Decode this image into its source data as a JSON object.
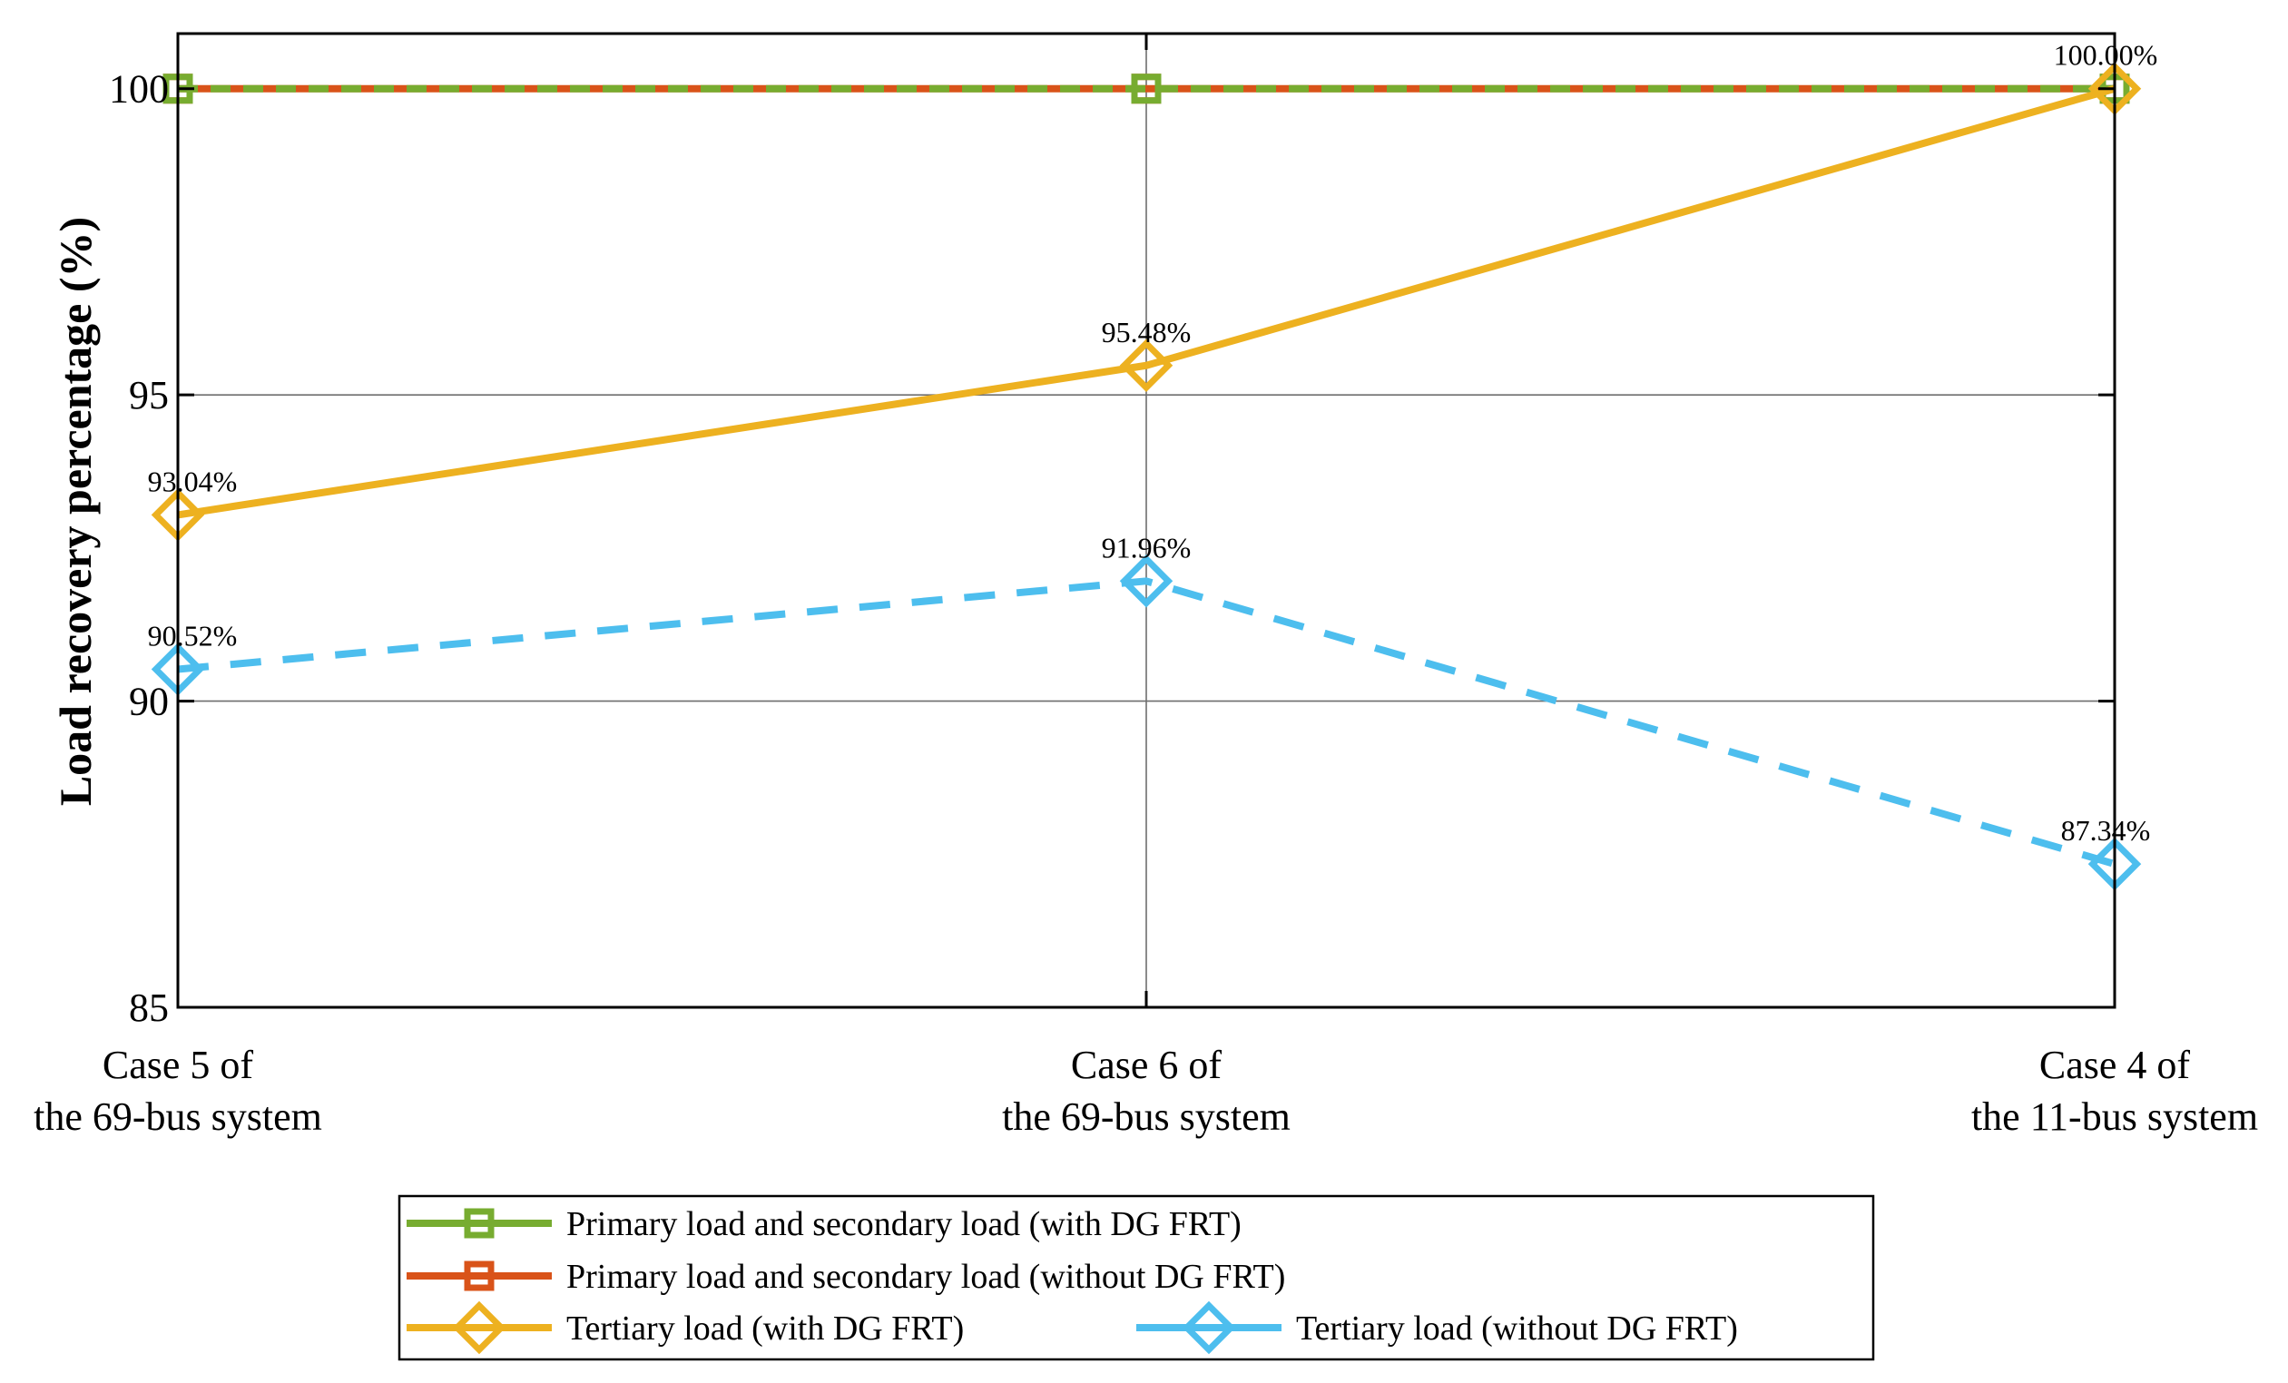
{
  "chart_data": {
    "type": "line",
    "title": "",
    "xlabel": "",
    "ylabel": "Load recovery percentage (%)",
    "ylim": [
      85,
      100.9
    ],
    "yticks": [
      85,
      90,
      95,
      100
    ],
    "ytick_labels": [
      "85",
      "90",
      "95",
      "100"
    ],
    "grid": true,
    "legend_position": "bottom-center",
    "categories": [
      [
        "Case 5 of",
        "the 69-bus system"
      ],
      [
        "Case 6 of",
        "the 69-bus system"
      ],
      [
        "Case 4 of",
        "the 11-bus system"
      ]
    ],
    "series": [
      {
        "name": "Primary load and secondary load (with DG FRT)",
        "values": [
          100,
          100,
          100
        ],
        "color": "#77AC30",
        "dashed": true,
        "marker": "square",
        "labels": [
          "",
          "",
          ""
        ]
      },
      {
        "name": "Primary load and secondary load (without DG FRT)",
        "values": [
          100,
          100,
          100
        ],
        "color": "#D95319",
        "dashed": false,
        "marker": "square",
        "labels": [
          "",
          "",
          ""
        ]
      },
      {
        "name": "Tertiary load (with DG FRT)",
        "values": [
          93.04,
          95.48,
          100
        ],
        "color": "#EDB120",
        "dashed": false,
        "marker": "diamond",
        "labels": [
          "93.04%",
          "95.48%",
          "100.00%"
        ]
      },
      {
        "name": "Tertiary load (without DG FRT)",
        "values": [
          90.52,
          91.96,
          87.34
        ],
        "color": "#4DBEEE",
        "dashed": true,
        "marker": "diamond",
        "labels": [
          "90.52%",
          "91.96%",
          "87.34%"
        ]
      }
    ]
  }
}
